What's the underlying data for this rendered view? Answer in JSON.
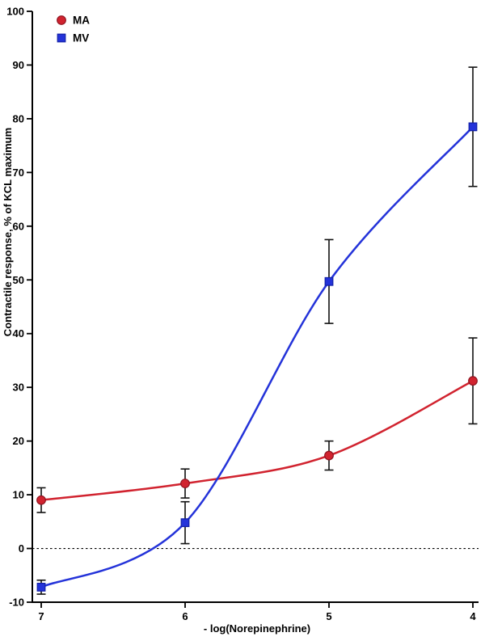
{
  "chart_data": {
    "type": "line",
    "title": "",
    "xlabel": "- log(Norepinephrine)",
    "ylabel": "Contractile response, % of KCL maximum",
    "x_ticks": [
      7,
      6,
      5,
      4
    ],
    "x_tick_labels": [
      "7",
      "6",
      "5",
      "4"
    ],
    "ylim": [
      -10,
      100
    ],
    "y_tick_step": 10,
    "zero_line": true,
    "legend_position": "top-left",
    "colors": {
      "axis": "#000000",
      "error_bar": "#111111",
      "zero_line": "#000000"
    },
    "series": [
      {
        "name": "MA",
        "marker": "circle",
        "color": "#d1232f",
        "edge": "#8f1420",
        "x": [
          7,
          6,
          5,
          4
        ],
        "y": [
          9.0,
          12.1,
          17.3,
          31.2
        ],
        "err": [
          2.3,
          2.7,
          2.7,
          8.0
        ]
      },
      {
        "name": "MV",
        "marker": "square",
        "color": "#2433d9",
        "edge": "#1220a8",
        "x": [
          7,
          6,
          5,
          4
        ],
        "y": [
          -7.2,
          4.8,
          49.7,
          78.5
        ],
        "err": [
          1.3,
          3.9,
          7.8,
          11.1
        ]
      }
    ]
  }
}
